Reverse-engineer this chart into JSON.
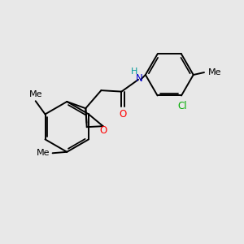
{
  "background_color": "#e8e8e8",
  "bond_color": "#000000",
  "o_color": "#ff0000",
  "n_color": "#0000cd",
  "cl_color": "#00aa00",
  "line_width": 1.4,
  "font_size": 8.5,
  "figsize": [
    3.0,
    3.0
  ],
  "dpi": 100,
  "xlim": [
    0,
    10
  ],
  "ylim": [
    0,
    10
  ]
}
